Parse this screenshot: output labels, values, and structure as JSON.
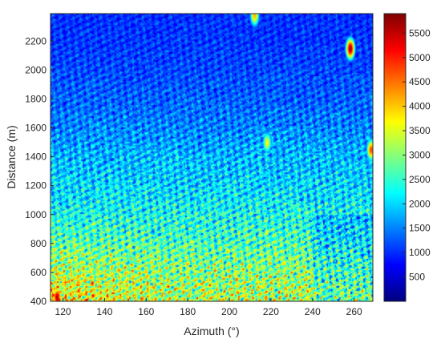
{
  "chart_data": {
    "type": "heatmap",
    "title": "",
    "xlabel": "Azimuth (°)",
    "ylabel": "Distance (m)",
    "xlim": [
      114,
      269
    ],
    "ylim": [
      400,
      2390
    ],
    "xticks": [
      120,
      140,
      160,
      180,
      200,
      220,
      240,
      260
    ],
    "yticks": [
      400,
      600,
      800,
      1000,
      1200,
      1400,
      1600,
      1800,
      2000,
      2200
    ],
    "colorbar": {
      "colormap": "jet",
      "limits": [
        0,
        5900
      ],
      "ticks": [
        500,
        1000,
        1500,
        2000,
        2500,
        3000,
        3500,
        4000,
        4500,
        5000,
        5500
      ]
    },
    "intensity_trend": [
      {
        "distance": 400,
        "typical_value": 3300
      },
      {
        "distance": 600,
        "typical_value": 3000
      },
      {
        "distance": 800,
        "typical_value": 2600
      },
      {
        "distance": 1000,
        "typical_value": 2300
      },
      {
        "distance": 1200,
        "typical_value": 2000
      },
      {
        "distance": 1400,
        "typical_value": 1800
      },
      {
        "distance": 1600,
        "typical_value": 1500
      },
      {
        "distance": 1800,
        "typical_value": 1300
      },
      {
        "distance": 2000,
        "typical_value": 1150
      },
      {
        "distance": 2200,
        "typical_value": 1050
      },
      {
        "distance": 2390,
        "typical_value": 1000
      }
    ],
    "hot_spots": [
      {
        "azimuth": 258,
        "distance": 2150,
        "value": 5800
      },
      {
        "azimuth": 212,
        "distance": 2380,
        "value": 4200
      },
      {
        "azimuth": 268,
        "distance": 1450,
        "value": 4800
      },
      {
        "azimuth": 117,
        "distance": 430,
        "value": 5600
      },
      {
        "azimuth": 218,
        "distance": 1500,
        "value": 3700
      }
    ]
  }
}
